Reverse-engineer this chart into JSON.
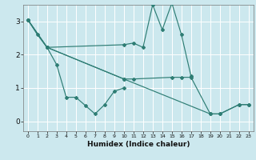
{
  "xlabel": "Humidex (Indice chaleur)",
  "background_color": "#cce8ee",
  "grid_color": "#ffffff",
  "line_color": "#2e7d74",
  "xlim": [
    -0.5,
    23.5
  ],
  "ylim": [
    -0.3,
    3.5
  ],
  "yticks": [
    0,
    1,
    2,
    3
  ],
  "xticks": [
    0,
    1,
    2,
    3,
    4,
    5,
    6,
    7,
    8,
    9,
    10,
    11,
    12,
    13,
    14,
    15,
    16,
    17,
    18,
    19,
    20,
    21,
    22,
    23
  ],
  "series": [
    {
      "x": [
        0,
        1,
        2,
        3,
        4,
        5,
        6,
        7,
        8,
        9,
        10
      ],
      "y": [
        3.05,
        2.6,
        2.22,
        1.7,
        0.72,
        0.72,
        0.47,
        0.22,
        0.5,
        0.9,
        1.0
      ]
    },
    {
      "x": [
        0,
        2,
        10,
        11,
        12,
        13,
        14,
        15,
        16,
        17
      ],
      "y": [
        3.05,
        2.22,
        2.3,
        2.35,
        2.22,
        3.5,
        2.75,
        3.55,
        2.6,
        1.35
      ]
    },
    {
      "x": [
        0,
        2,
        10,
        11,
        15,
        16,
        17,
        19,
        20,
        22,
        23
      ],
      "y": [
        3.05,
        2.22,
        1.27,
        1.27,
        1.32,
        1.32,
        1.32,
        0.22,
        0.22,
        0.5,
        0.5
      ]
    },
    {
      "x": [
        0,
        2,
        10,
        19,
        20,
        22,
        23
      ],
      "y": [
        3.05,
        2.22,
        1.27,
        0.22,
        0.22,
        0.5,
        0.5
      ]
    }
  ]
}
